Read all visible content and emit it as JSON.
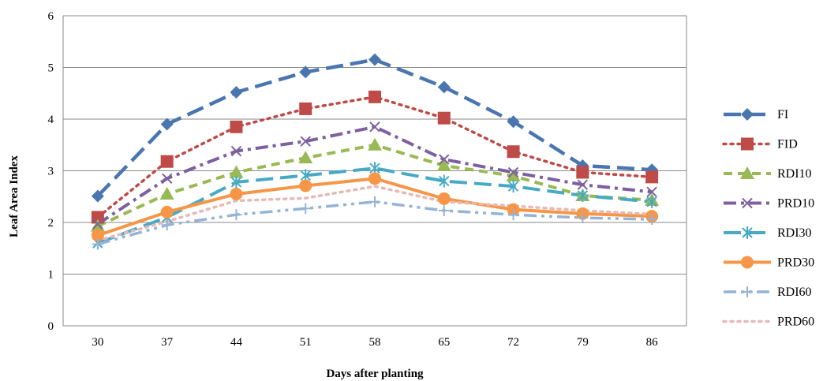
{
  "chart_data": {
    "type": "line",
    "title": "",
    "xlabel": "Days after planting",
    "ylabel": "Leaf Area Index",
    "x": [
      30,
      37,
      44,
      51,
      58,
      65,
      72,
      79,
      86
    ],
    "ylim": [
      0,
      6
    ],
    "yticks": [
      0,
      1,
      2,
      3,
      4,
      5,
      6
    ],
    "grid": "horizontal",
    "legend_position": "right",
    "series": [
      {
        "name": "FI",
        "color": "#4A76B0",
        "dash": "longdash",
        "marker": "diamond",
        "width": 4.5,
        "values": [
          2.51,
          3.9,
          4.52,
          4.91,
          5.15,
          4.62,
          3.95,
          3.1,
          3.02
        ]
      },
      {
        "name": "FID",
        "color": "#BE4B48",
        "dash": "dot",
        "marker": "square",
        "width": 3.5,
        "values": [
          2.1,
          3.18,
          3.85,
          4.2,
          4.43,
          4.02,
          3.37,
          2.97,
          2.88
        ]
      },
      {
        "name": "RDI10",
        "color": "#98B954",
        "dash": "dash",
        "marker": "triangle",
        "width": 4.0,
        "values": [
          1.93,
          2.55,
          2.97,
          3.25,
          3.5,
          3.1,
          2.9,
          2.52,
          2.43
        ]
      },
      {
        "name": "PRD10",
        "color": "#7D60A0",
        "dash": "dashdot",
        "marker": "x",
        "width": 4.0,
        "values": [
          1.97,
          2.85,
          3.38,
          3.57,
          3.85,
          3.22,
          2.97,
          2.73,
          2.59
        ]
      },
      {
        "name": "RDI30",
        "color": "#46AAC5",
        "dash": "longdash",
        "marker": "star",
        "width": 4.0,
        "values": [
          1.6,
          2.1,
          2.78,
          2.91,
          3.05,
          2.8,
          2.7,
          2.52,
          2.4
        ]
      },
      {
        "name": "PRD30",
        "color": "#F79646",
        "dash": "solid",
        "marker": "circle",
        "width": 4.0,
        "values": [
          1.75,
          2.2,
          2.55,
          2.71,
          2.85,
          2.46,
          2.25,
          2.17,
          2.12
        ]
      },
      {
        "name": "RDI60",
        "color": "#95B3D7",
        "dash": "dashdotdot",
        "marker": "plus",
        "width": 3.5,
        "values": [
          1.58,
          1.95,
          2.15,
          2.27,
          2.4,
          2.23,
          2.15,
          2.09,
          2.06
        ]
      },
      {
        "name": "PRD60",
        "color": "#E6B9B8",
        "dash": "dot",
        "marker": "none",
        "width": 3.5,
        "values": [
          1.65,
          2.02,
          2.42,
          2.47,
          2.7,
          2.4,
          2.32,
          2.23,
          2.16
        ]
      }
    ]
  }
}
